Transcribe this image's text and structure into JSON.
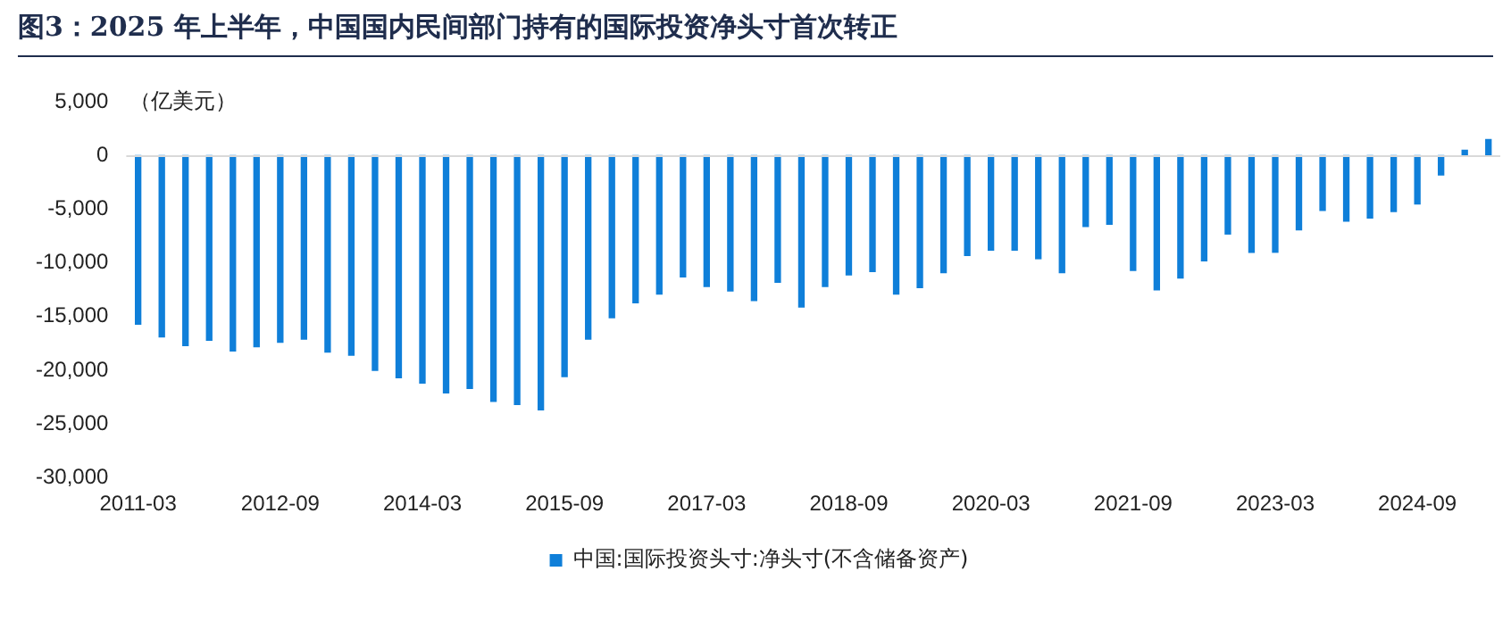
{
  "chart_data": {
    "type": "bar",
    "title": "图3：2025 年上半年，中国国内民间部门持有的国际投资净头寸首次转正",
    "ylabel": "（亿美元）",
    "categories": [
      "2011-03",
      null,
      null,
      null,
      null,
      null,
      "2012-09",
      null,
      null,
      null,
      null,
      null,
      "2014-03",
      null,
      null,
      null,
      null,
      null,
      "2015-09",
      null,
      null,
      null,
      null,
      null,
      "2017-03",
      null,
      null,
      null,
      null,
      null,
      "2018-09",
      null,
      null,
      null,
      null,
      null,
      "2020-03",
      null,
      null,
      null,
      null,
      null,
      "2021-09",
      null,
      null,
      null,
      null,
      null,
      "2023-03",
      null,
      null,
      null,
      null,
      null,
      "2024-09",
      null,
      null,
      null
    ],
    "series": [
      {
        "name": "中国:国际投资头寸:净头寸(不含储备资产)",
        "color": "#0f7fd9",
        "values": [
          -15700,
          -16900,
          -17700,
          -17200,
          -18200,
          -17800,
          -17400,
          -17100,
          -18300,
          -18600,
          -20000,
          -20700,
          -21200,
          -22100,
          -21700,
          -22900,
          -23200,
          -23700,
          -20600,
          -17100,
          -15100,
          -13700,
          -12900,
          -11300,
          -12200,
          -12600,
          -13500,
          -11800,
          -14100,
          -12200,
          -11100,
          -10800,
          -12900,
          -12300,
          -10900,
          -9300,
          -8800,
          -8800,
          -9600,
          -10900,
          -6600,
          -6400,
          -10700,
          -12500,
          -11400,
          -9800,
          -7300,
          -9000,
          -9000,
          -6900,
          -5100,
          -6100,
          -5800,
          -5200,
          -4500,
          -1800,
          500,
          1500
        ]
      }
    ],
    "ylim": [
      -30000,
      5000
    ],
    "yticks": [
      {
        "value": 5000,
        "label": "5,000"
      },
      0,
      {
        "value": -5000,
        "label": "-5,000"
      },
      {
        "value": -10000,
        "label": "-10,000"
      },
      {
        "value": -15000,
        "label": "-15,000"
      },
      {
        "value": -20000,
        "label": "-20,000"
      },
      {
        "value": -25000,
        "label": "-25,000"
      },
      {
        "value": -30000,
        "label": "-30,000"
      }
    ],
    "ref_lines": [
      {
        "axis": "y",
        "value": 0,
        "color": "#d9d9d9"
      }
    ],
    "grid": false,
    "legend": "bottom"
  }
}
